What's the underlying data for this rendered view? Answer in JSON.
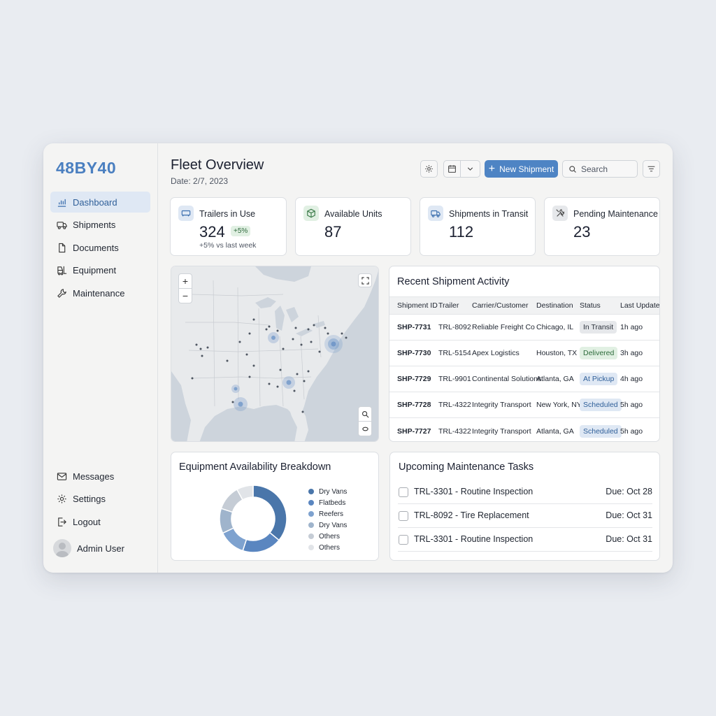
{
  "app": {
    "logo": "48BY40"
  },
  "sidebar": {
    "items": [
      {
        "label": "Dashboard",
        "icon": "chart-bars-icon",
        "active": true
      },
      {
        "label": "Shipments",
        "icon": "truck-icon"
      },
      {
        "label": "Documents",
        "icon": "document-icon"
      },
      {
        "label": "Equipment",
        "icon": "forklift-icon"
      },
      {
        "label": "Maintenance",
        "icon": "wrench-icon"
      }
    ],
    "bottom_items": [
      {
        "label": "Messages",
        "icon": "mail-icon"
      },
      {
        "label": "Settings",
        "icon": "gear-icon"
      },
      {
        "label": "Logout",
        "icon": "logout-icon"
      }
    ],
    "user": {
      "name": "Admin User"
    }
  },
  "header": {
    "title": "Fleet Overview",
    "date": "Date: 2/7, 2023",
    "new_shipment_label": "New Shipment",
    "search_placeholder": "Search"
  },
  "kpis": [
    {
      "label": "Trailers in Use",
      "value": "324",
      "badge": "+5%",
      "note": "+5% vs last week",
      "icon": "trailer-icon"
    },
    {
      "label": "Available Units",
      "value": "87",
      "icon": "box-icon"
    },
    {
      "label": "Shipments in Transit",
      "value": "112",
      "icon": "truck-icon"
    },
    {
      "label": "Pending Maintenance",
      "value": "23",
      "icon": "tools-icon"
    }
  ],
  "activity": {
    "title": "Recent Shipment Activity",
    "columns": [
      "Shipment ID",
      "Trailer",
      "Carrier/Customer",
      "Destination",
      "Status",
      "Last Update"
    ],
    "rows": [
      {
        "id": "SHP-7731",
        "trailer": "TRL-8092",
        "carrier": "Reliable Freight Co",
        "destination": "Chicago, IL",
        "status": "In Transit",
        "status_kind": "transit",
        "updated": "1h ago"
      },
      {
        "id": "SHP-7730",
        "trailer": "TRL-5154",
        "carrier": "Apex Logistics",
        "destination": "Houston, TX",
        "status": "Delivered",
        "status_kind": "delivered",
        "updated": "3h ago"
      },
      {
        "id": "SHP-7729",
        "trailer": "TRL-9901",
        "carrier": "Continental Solutions",
        "destination": "Atlanta, GA",
        "status": "At Pickup",
        "status_kind": "pickup",
        "updated": "4h ago"
      },
      {
        "id": "SHP-7728",
        "trailer": "TRL-4322",
        "carrier": "Integrity Transport",
        "destination": "New York, NY",
        "status": "Scheduled",
        "status_kind": "scheduled",
        "updated": "5h ago"
      },
      {
        "id": "SHP-7727",
        "trailer": "TRL-4322",
        "carrier": "Integrity Transport",
        "destination": "Atlanta, GA",
        "status": "Scheduled",
        "status_kind": "scheduled",
        "updated": "5h ago"
      }
    ]
  },
  "equipment": {
    "title": "Equipment Availability Breakdown",
    "legend": [
      {
        "label": "Dry Vans",
        "color": "#4a76aa"
      },
      {
        "label": "Flatbeds",
        "color": "#5a86c0"
      },
      {
        "label": "Reefers",
        "color": "#7ea2cf"
      },
      {
        "label": "Dry Vans",
        "color": "#9fb4cc"
      },
      {
        "label": "Others",
        "color": "#c5ccd5"
      },
      {
        "label": "Others",
        "color": "#e1e4e8"
      }
    ],
    "shares": [
      0.36,
      0.19,
      0.13,
      0.12,
      0.12,
      0.08
    ]
  },
  "maintenance": {
    "title": "Upcoming Maintenance Tasks",
    "tasks": [
      {
        "label": "TRL-3301 - Routine Inspection",
        "due": "Due: Oct 28"
      },
      {
        "label": "TRL-8092 - Tire Replacement",
        "due": "Due: Oct 31"
      },
      {
        "label": "TRL-3301 - Routine Inspection",
        "due": "Due: Oct 31"
      }
    ]
  },
  "colors": {
    "accent": "#4e84c4",
    "active_bg": "#dfe8f4",
    "delivered_bg": "#e1f0e3",
    "map_water": "#cdd4dc",
    "map_land": "#e8eaec"
  }
}
